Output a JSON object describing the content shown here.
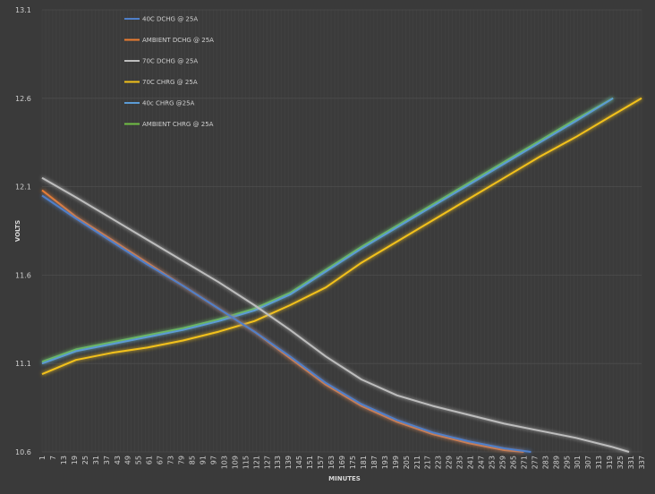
{
  "chart_data": {
    "type": "line",
    "title": "",
    "xlabel": "MINUTES",
    "ylabel": "VOLTS",
    "ylim": [
      10.6,
      13.1
    ],
    "xlim": [
      1,
      337
    ],
    "y_ticks": [
      "13.1",
      "12.6",
      "12.1",
      "11.6",
      "11.1",
      "10.6"
    ],
    "x_ticks": [
      "1",
      "7",
      "13",
      "19",
      "25",
      "31",
      "37",
      "43",
      "49",
      "55",
      "61",
      "67",
      "73",
      "79",
      "85",
      "91",
      "97",
      "103",
      "109",
      "115",
      "121",
      "127",
      "133",
      "139",
      "145",
      "151",
      "157",
      "163",
      "169",
      "175",
      "181",
      "187",
      "193",
      "199",
      "205",
      "211",
      "217",
      "223",
      "229",
      "235",
      "241",
      "247",
      "253",
      "259",
      "265",
      "271",
      "277",
      "283",
      "289",
      "295",
      "301",
      "307",
      "313",
      "319",
      "325",
      "331",
      "337"
    ],
    "grid": true,
    "legend": "top-left",
    "series": [
      {
        "name": "40C DCHG @ 25A",
        "color": "#4f7fc9",
        "x": [
          1,
          20,
          40,
          60,
          80,
          100,
          120,
          140,
          160,
          180,
          200,
          220,
          240,
          260,
          275
        ],
        "y": [
          12.05,
          11.92,
          11.79,
          11.66,
          11.54,
          11.41,
          11.28,
          11.14,
          10.99,
          10.87,
          10.78,
          10.71,
          10.66,
          10.62,
          10.6
        ]
      },
      {
        "name": "AMBIENT DCHG @ 25A",
        "color": "#ec7d31",
        "x": [
          1,
          20,
          40,
          60,
          80,
          100,
          120,
          140,
          160,
          180,
          200,
          220,
          240,
          260,
          271
        ],
        "y": [
          12.08,
          11.93,
          11.8,
          11.67,
          11.54,
          11.41,
          11.28,
          11.13,
          10.98,
          10.86,
          10.77,
          10.7,
          10.65,
          10.61,
          10.6
        ]
      },
      {
        "name": "70C DCHG @ 25A",
        "color": "#bdbdbd",
        "x": [
          1,
          20,
          40,
          60,
          80,
          100,
          120,
          140,
          160,
          180,
          200,
          220,
          240,
          260,
          280,
          300,
          320,
          330
        ],
        "y": [
          12.15,
          12.04,
          11.92,
          11.8,
          11.68,
          11.56,
          11.43,
          11.29,
          11.14,
          11.01,
          10.92,
          10.86,
          10.81,
          10.76,
          10.72,
          10.68,
          10.63,
          10.6
        ]
      },
      {
        "name": "70C CHRG @ 25A",
        "color": "#f2c11a",
        "x": [
          1,
          20,
          40,
          60,
          80,
          100,
          120,
          140,
          160,
          180,
          200,
          220,
          240,
          260,
          280,
          300,
          320,
          337
        ],
        "y": [
          11.04,
          11.12,
          11.16,
          11.19,
          11.23,
          11.28,
          11.34,
          11.43,
          11.53,
          11.67,
          11.79,
          11.91,
          12.03,
          12.15,
          12.27,
          12.38,
          12.5,
          12.6
        ]
      },
      {
        "name": "40c CHRG @25A",
        "color": "#5b9bd5",
        "x": [
          1,
          20,
          40,
          60,
          80,
          100,
          120,
          140,
          160,
          180,
          200,
          220,
          240,
          260,
          280,
          300,
          321
        ],
        "y": [
          11.1,
          11.17,
          11.21,
          11.25,
          11.29,
          11.34,
          11.4,
          11.49,
          11.62,
          11.75,
          11.87,
          11.99,
          12.11,
          12.23,
          12.35,
          12.47,
          12.6
        ]
      },
      {
        "name": "AMBIENT CHRG @ 25A",
        "color": "#70bf45",
        "x": [
          1,
          20,
          40,
          60,
          80,
          100,
          120,
          140,
          160,
          180,
          200,
          220,
          240,
          260,
          280,
          300,
          321
        ],
        "y": [
          11.11,
          11.18,
          11.22,
          11.26,
          11.3,
          11.35,
          11.41,
          11.5,
          11.63,
          11.76,
          11.88,
          12.0,
          12.12,
          12.24,
          12.36,
          12.48,
          12.6
        ]
      }
    ]
  }
}
